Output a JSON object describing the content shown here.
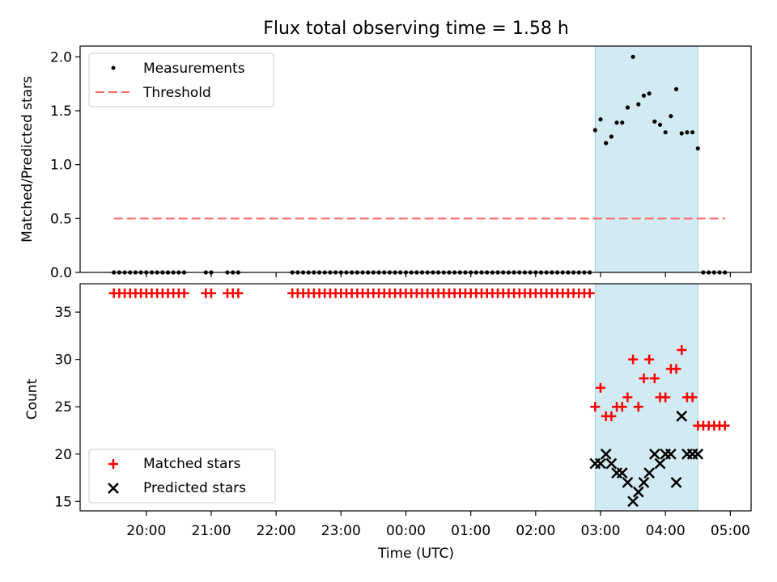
{
  "title": "Flux total observing time = 1.58 h",
  "xlabel": "Time (UTC)",
  "x_ticks": [
    "20:00",
    "21:00",
    "22:00",
    "23:00",
    "00:00",
    "01:00",
    "02:00",
    "03:00",
    "04:00",
    "05:00"
  ],
  "x_range_hours": [
    18.98,
    29.32
  ],
  "colors": {
    "measurements": "#000000",
    "threshold": "#ff6666",
    "matched": "#ff0000",
    "predicted": "#000000",
    "highlight": "#add8e6"
  },
  "chart_data": [
    {
      "type": "scatter",
      "ylabel": "Matched/Predicted stars",
      "ylim": [
        0,
        2.1
      ],
      "yticks": [
        "0.0",
        "0.5",
        "1.0",
        "1.5",
        "2.0"
      ],
      "legend": {
        "placement": "top-left",
        "entries": [
          "Measurements",
          "Threshold"
        ]
      },
      "highlight_span": [
        "02:55",
        "04:30"
      ],
      "series": [
        {
          "name": "Measurements",
          "kind": "points",
          "x": [
            "19:30",
            "19:35",
            "19:40",
            "19:45",
            "19:50",
            "19:55",
            "20:00",
            "20:05",
            "20:10",
            "20:15",
            "20:20",
            "20:25",
            "20:30",
            "20:35",
            "20:55",
            "21:00",
            "21:15",
            "21:20",
            "21:25",
            "22:15",
            "22:20",
            "22:25",
            "22:30",
            "22:35",
            "22:40",
            "22:45",
            "22:50",
            "22:55",
            "23:00",
            "23:05",
            "23:10",
            "23:15",
            "23:20",
            "23:25",
            "23:30",
            "23:35",
            "23:40",
            "23:45",
            "23:50",
            "23:55",
            "00:00",
            "00:05",
            "00:10",
            "00:15",
            "00:20",
            "00:25",
            "00:30",
            "00:35",
            "00:40",
            "00:45",
            "00:50",
            "00:55",
            "01:00",
            "01:05",
            "01:10",
            "01:15",
            "01:20",
            "01:25",
            "01:30",
            "01:35",
            "01:40",
            "01:45",
            "01:50",
            "01:55",
            "02:00",
            "02:05",
            "02:10",
            "02:15",
            "02:20",
            "02:25",
            "02:30",
            "02:35",
            "02:40",
            "02:45",
            "02:50",
            "02:55",
            "03:00",
            "03:05",
            "03:10",
            "03:15",
            "03:20",
            "03:25",
            "03:30",
            "03:35",
            "03:40",
            "03:45",
            "03:50",
            "03:55",
            "04:00",
            "04:05",
            "04:10",
            "04:15",
            "04:20",
            "04:25",
            "04:30",
            "04:35",
            "04:40",
            "04:45",
            "04:50",
            "04:55"
          ],
          "y": [
            0,
            0,
            0,
            0,
            0,
            0,
            0,
            0,
            0,
            0,
            0,
            0,
            0,
            0,
            0,
            0,
            0,
            0,
            0,
            0,
            0,
            0,
            0,
            0,
            0,
            0,
            0,
            0,
            0,
            0,
            0,
            0,
            0,
            0,
            0,
            0,
            0,
            0,
            0,
            0,
            0,
            0,
            0,
            0,
            0,
            0,
            0,
            0,
            0,
            0,
            0,
            0,
            0,
            0,
            0,
            0,
            0,
            0,
            0,
            0,
            0,
            0,
            0,
            0,
            0,
            0,
            0,
            0,
            0,
            0,
            0,
            0,
            0,
            0,
            0,
            1.32,
            1.42,
            1.2,
            1.26,
            1.39,
            1.39,
            1.53,
            2.0,
            1.56,
            1.64,
            1.66,
            1.4,
            1.37,
            1.3,
            1.45,
            1.7,
            1.29,
            1.3,
            1.3,
            1.15,
            0,
            0,
            0,
            0,
            0
          ]
        },
        {
          "name": "Threshold",
          "kind": "dashed-line",
          "x": [
            "19:30",
            "04:55"
          ],
          "y": [
            0.5,
            0.5
          ]
        }
      ]
    },
    {
      "type": "scatter",
      "ylabel": "Count",
      "ylim": [
        14,
        38
      ],
      "yticks": [
        "15",
        "20",
        "25",
        "30",
        "35"
      ],
      "legend": {
        "placement": "bottom-left",
        "entries": [
          "Matched stars",
          "Predicted stars"
        ]
      },
      "highlight_span": [
        "02:55",
        "04:30"
      ],
      "series": [
        {
          "name": "Matched stars",
          "kind": "plus",
          "x": [
            "19:30",
            "19:35",
            "19:40",
            "19:45",
            "19:50",
            "19:55",
            "20:00",
            "20:05",
            "20:10",
            "20:15",
            "20:20",
            "20:25",
            "20:30",
            "20:35",
            "20:55",
            "21:00",
            "21:15",
            "21:20",
            "21:25",
            "22:15",
            "22:20",
            "22:25",
            "22:30",
            "22:35",
            "22:40",
            "22:45",
            "22:50",
            "22:55",
            "23:00",
            "23:05",
            "23:10",
            "23:15",
            "23:20",
            "23:25",
            "23:30",
            "23:35",
            "23:40",
            "23:45",
            "23:50",
            "23:55",
            "00:00",
            "00:05",
            "00:10",
            "00:15",
            "00:20",
            "00:25",
            "00:30",
            "00:35",
            "00:40",
            "00:45",
            "00:50",
            "00:55",
            "01:00",
            "01:05",
            "01:10",
            "01:15",
            "01:20",
            "01:25",
            "01:30",
            "01:35",
            "01:40",
            "01:45",
            "01:50",
            "01:55",
            "02:00",
            "02:05",
            "02:10",
            "02:15",
            "02:20",
            "02:25",
            "02:30",
            "02:35",
            "02:40",
            "02:45",
            "02:50",
            "02:55",
            "03:00",
            "03:05",
            "03:10",
            "03:15",
            "03:20",
            "03:25",
            "03:30",
            "03:35",
            "03:40",
            "03:45",
            "03:50",
            "03:55",
            "04:00",
            "04:05",
            "04:10",
            "04:15",
            "04:20",
            "04:25",
            "04:30",
            "04:35",
            "04:40",
            "04:45",
            "04:50",
            "04:55"
          ],
          "y": [
            37,
            37,
            37,
            37,
            37,
            37,
            37,
            37,
            37,
            37,
            37,
            37,
            37,
            37,
            37,
            37,
            37,
            37,
            37,
            37,
            37,
            37,
            37,
            37,
            37,
            37,
            37,
            37,
            37,
            37,
            37,
            37,
            37,
            37,
            37,
            37,
            37,
            37,
            37,
            37,
            37,
            37,
            37,
            37,
            37,
            37,
            37,
            37,
            37,
            37,
            37,
            37,
            37,
            37,
            37,
            37,
            37,
            37,
            37,
            37,
            37,
            37,
            37,
            37,
            37,
            37,
            37,
            37,
            37,
            37,
            37,
            37,
            37,
            37,
            37,
            25,
            27,
            24,
            24,
            25,
            25,
            26,
            30,
            25,
            28,
            30,
            28,
            26,
            26,
            29,
            29,
            31,
            26,
            26,
            23,
            23,
            23,
            23,
            23,
            23
          ]
        },
        {
          "name": "Predicted stars",
          "kind": "cross",
          "x": [
            "02:55",
            "03:00",
            "03:05",
            "03:10",
            "03:15",
            "03:20",
            "03:25",
            "03:30",
            "03:35",
            "03:40",
            "03:45",
            "03:50",
            "03:55",
            "04:00",
            "04:05",
            "04:10",
            "04:15",
            "04:20",
            "04:25",
            "04:30"
          ],
          "y": [
            19,
            19,
            20,
            19,
            18,
            18,
            17,
            15,
            16,
            17,
            18,
            20,
            19,
            20,
            20,
            17,
            24,
            20,
            20,
            20
          ]
        }
      ]
    }
  ]
}
